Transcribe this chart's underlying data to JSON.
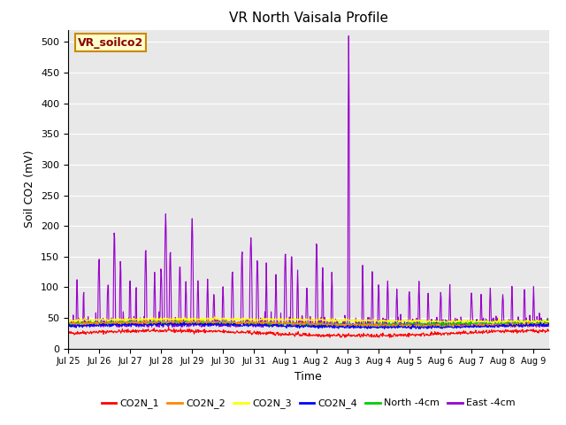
{
  "title": "VR North Vaisala Profile",
  "xlabel": "Time",
  "ylabel": "Soil CO2 (mV)",
  "ylim": [
    0,
    520
  ],
  "yticks": [
    0,
    50,
    100,
    150,
    200,
    250,
    300,
    350,
    400,
    450,
    500
  ],
  "annotation_text": "VR_soilco2",
  "annotation_bbox_facecolor": "#ffffcc",
  "annotation_bbox_edgecolor": "#cc8800",
  "annotation_text_color": "#8b0000",
  "plot_bg_color": "#e8e8e8",
  "fig_bg_color": "#ffffff",
  "series_colors": {
    "CO2N_1": "#ff0000",
    "CO2N_2": "#ff8800",
    "CO2N_3": "#ffff00",
    "CO2N_4": "#0000ff",
    "North -4cm": "#00cc00",
    "East -4cm": "#9900cc"
  },
  "legend_labels": [
    "CO2N_1",
    "CO2N_2",
    "CO2N_3",
    "CO2N_4",
    "North -4cm",
    "East -4cm"
  ],
  "legend_colors": [
    "#ff0000",
    "#ff8800",
    "#ffff00",
    "#0000ff",
    "#00cc00",
    "#9900cc"
  ],
  "linewidth": 0.8,
  "n_points": 1000,
  "seed": 42,
  "xtick_positions": [
    0,
    1,
    2,
    3,
    4,
    5,
    6,
    7,
    8,
    9,
    10,
    11,
    12,
    13,
    14,
    15
  ],
  "xtick_labels": [
    "Jul 25",
    "Jul 26",
    "Jul 27",
    "Jul 28",
    "Jul 29",
    "Jul 30",
    "Jul 31",
    "Aug 1",
    "Aug 2",
    "Aug 3",
    "Aug 4",
    "Aug 5",
    "Aug 6",
    "Aug 7",
    "Aug 8",
    "Aug 9"
  ]
}
